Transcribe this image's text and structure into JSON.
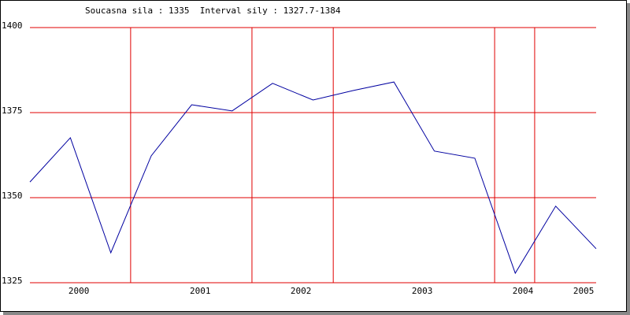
{
  "chart_data": {
    "type": "line",
    "title": "Soucasna sila : 1335  Interval sily : 1327.7-1384",
    "x": [
      0,
      1,
      2,
      3,
      4,
      5,
      6,
      7,
      8,
      9,
      10,
      11,
      12,
      13,
      14
    ],
    "series": [
      {
        "color": "#0000a0",
        "values": [
          1354.6,
          1367.6,
          1333.8,
          1362.3,
          1377.3,
          1375.5,
          1383.6,
          1378.7,
          1381.5,
          1384,
          1363.7,
          1361.6,
          1327.8,
          1347.5,
          1335
        ]
      }
    ],
    "xlim": [
      0,
      14
    ],
    "xticks": [
      {
        "value": 1.21,
        "label": "2000"
      },
      {
        "value": 4.21,
        "label": "2001"
      },
      {
        "value": 6.7,
        "label": "2002"
      },
      {
        "value": 9.7,
        "label": "2003"
      },
      {
        "value": 12.19,
        "label": "2004"
      },
      {
        "value": 13.69,
        "label": "2005"
      }
    ],
    "xgrid": [
      2.49,
      5.49,
      7.5,
      11.49,
      12.48
    ],
    "ylim": [
      1325,
      1400
    ],
    "yticks": [
      1325,
      1350,
      1375,
      1400
    ],
    "grid": true,
    "grid_color": "#e00000"
  }
}
